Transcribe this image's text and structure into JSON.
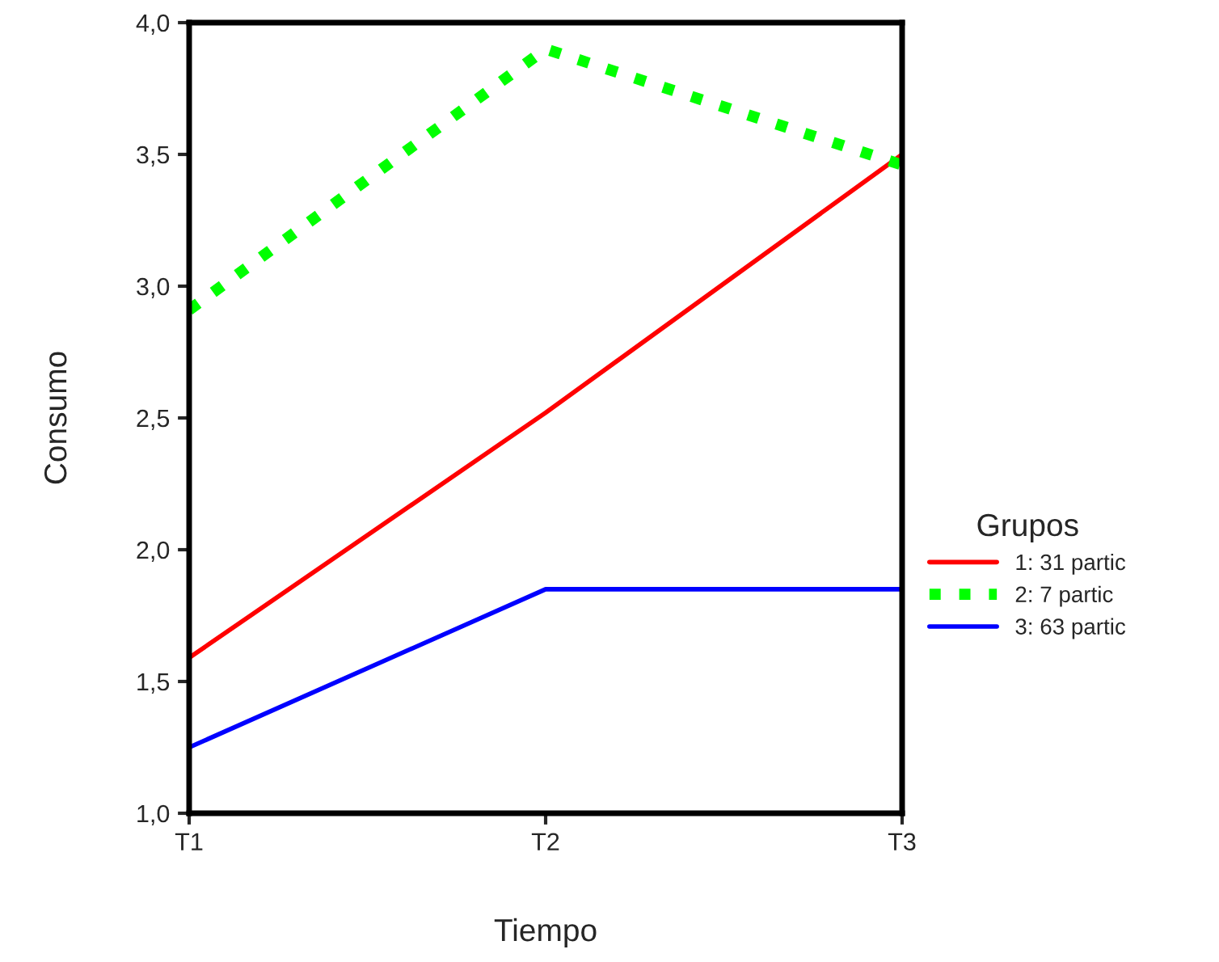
{
  "chart_data": {
    "type": "line",
    "xlabel": "Tiempo",
    "ylabel": "Consumo",
    "legend_title": "Grupos",
    "categories": [
      "T1",
      "T2",
      "T3"
    ],
    "series": [
      {
        "name": "1: 31 partic",
        "color": "#ff0000",
        "values": [
          1.59,
          2.52,
          3.5
        ],
        "line_style": "solid"
      },
      {
        "name": "2: 7 partic",
        "color": "#00ff00",
        "values": [
          2.91,
          3.9,
          3.46
        ],
        "line_style": "dotted"
      },
      {
        "name": "3: 63 partic",
        "color": "#0000ff",
        "values": [
          1.25,
          1.85,
          1.85
        ],
        "line_style": "solid"
      }
    ],
    "ylim": [
      1.0,
      4.0
    ],
    "yticks": [
      {
        "value": 1.0,
        "label": "1,0"
      },
      {
        "value": 1.5,
        "label": "1,5"
      },
      {
        "value": 2.0,
        "label": "2,0"
      },
      {
        "value": 2.5,
        "label": "2,5"
      },
      {
        "value": 3.0,
        "label": "3,0"
      },
      {
        "value": 3.5,
        "label": "3,5"
      },
      {
        "value": 4.0,
        "label": "4,0"
      }
    ],
    "grid": false,
    "legend": "right",
    "marker": "none"
  }
}
